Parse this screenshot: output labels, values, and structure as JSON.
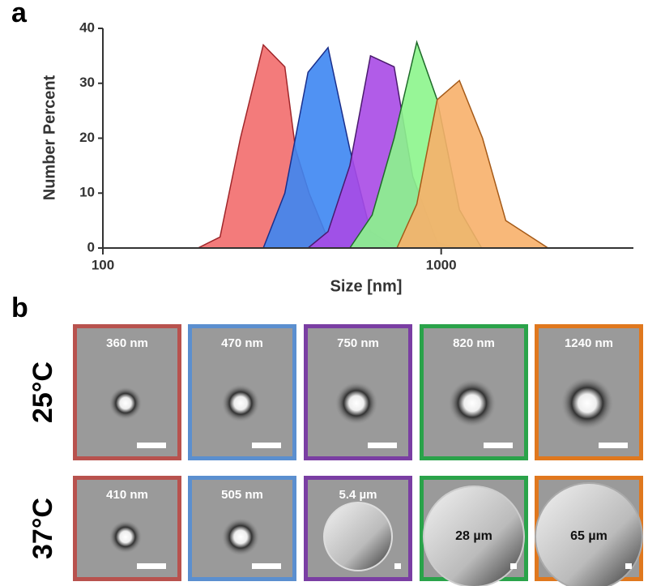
{
  "chart_data": {
    "type": "area",
    "panel_label": "a",
    "xlabel": "Size [nm]",
    "ylabel": "Number  Percent",
    "xscale": "log",
    "xlim": [
      100,
      3700
    ],
    "xticks": [
      100,
      1000
    ],
    "ylim": [
      0,
      40
    ],
    "yticks": [
      0,
      10,
      20,
      30,
      40
    ],
    "series": [
      {
        "color": "#f26d6d",
        "edge": "#a0262a",
        "x": [
          120,
          191,
          222,
          255,
          298,
          345,
          371,
          407,
          467,
          537
        ],
        "y": [
          0,
          0,
          2,
          20,
          37,
          33,
          18,
          10,
          1,
          0
        ]
      },
      {
        "color": "#3d86f2",
        "edge": "#1a2f8c",
        "x": [
          298,
          345,
          404,
          463,
          537,
          618,
          740
        ],
        "y": [
          0,
          10,
          32,
          36.5,
          18,
          3,
          0
        ]
      },
      {
        "color": "#a84ae6",
        "edge": "#4a1a6e",
        "x": [
          404,
          463,
          537,
          618,
          726,
          824,
          973,
          1118
        ],
        "y": [
          0,
          3,
          15,
          35,
          33,
          13,
          1,
          0
        ]
      },
      {
        "color": "#8cf58c",
        "edge": "#1f6b2a",
        "x": [
          537,
          625,
          726,
          847,
          973,
          1132,
          1317
        ],
        "y": [
          0,
          6,
          20,
          37.5,
          27,
          7,
          0
        ]
      },
      {
        "color": "#f7b06a",
        "edge": "#a55a18",
        "x": [
          740,
          847,
          973,
          1132,
          1325,
          1552,
          2070
        ],
        "y": [
          0,
          8,
          27,
          30.5,
          20,
          5,
          0
        ]
      }
    ]
  },
  "panel_b": {
    "panel_label": "b",
    "rows": [
      {
        "label": "25°C",
        "cells": [
          "360 nm",
          "470 nm",
          "750 nm",
          "820 nm",
          "1240 nm"
        ]
      },
      {
        "label": "37°C",
        "cells": [
          "410 nm",
          "505 nm",
          "5.4 µm",
          "28 µm",
          "65 µm"
        ]
      }
    ],
    "border_colors": [
      "#b8524e",
      "#5b8fcf",
      "#7a3ea3",
      "#2aa34a",
      "#e0781e"
    ]
  }
}
